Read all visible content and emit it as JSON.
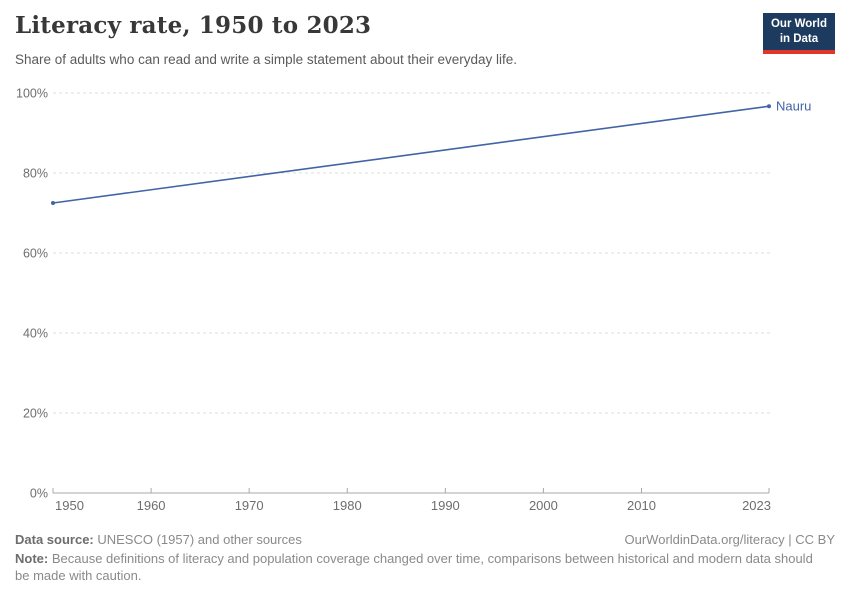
{
  "header": {
    "title": "Literacy rate, 1950 to 2023",
    "subtitle": "Share of adults who can read and write a simple statement about their everyday life.",
    "logo": {
      "line1": "Our World",
      "line2": "in Data",
      "bg_color": "#1d3a5f",
      "accent_color": "#e0362c"
    }
  },
  "chart_data": {
    "type": "line",
    "title": "Literacy rate, 1950 to 2023",
    "xlabel": "",
    "ylabel": "",
    "xlim": [
      1950,
      2023
    ],
    "ylim": [
      0,
      100
    ],
    "x_ticks": [
      1950,
      1960,
      1970,
      1980,
      1990,
      2000,
      2010,
      2023
    ],
    "y_ticks": [
      0,
      20,
      40,
      60,
      80,
      100
    ],
    "y_tick_suffix": "%",
    "grid": "horizontal-dashed",
    "legend_position": "end-of-line-label",
    "series": [
      {
        "name": "Nauru",
        "color": "#4164a5",
        "points": [
          {
            "x": 1950,
            "y": 72.5
          },
          {
            "x": 2023,
            "y": 96.7
          }
        ]
      }
    ]
  },
  "footer": {
    "source_label": "Data source:",
    "source_text": " UNESCO (1957) and other sources",
    "right_text": "OurWorldinData.org/literacy | CC BY",
    "note_label": "Note:",
    "note_text": " Because definitions of literacy and population coverage changed over time, comparisons between historical and modern data should be made with caution."
  }
}
